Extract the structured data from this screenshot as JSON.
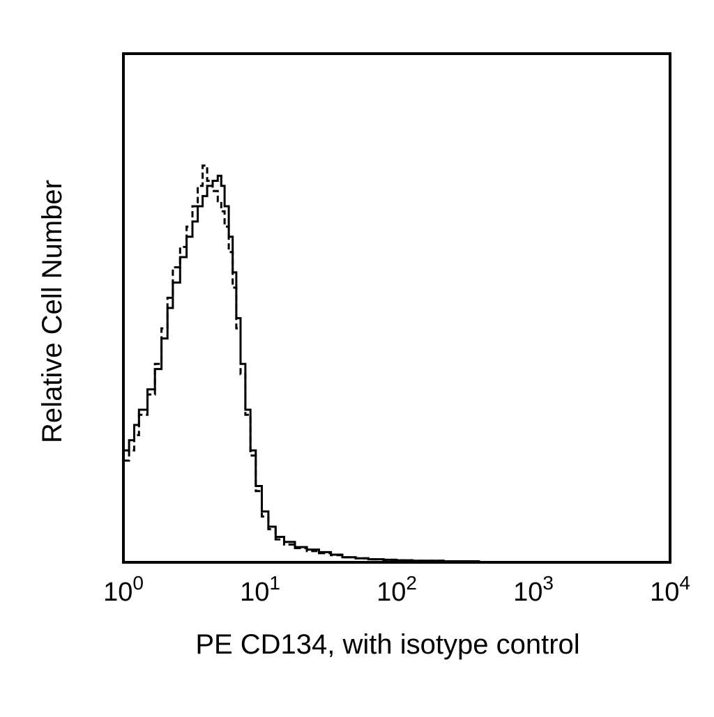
{
  "chart_data": {
    "type": "line",
    "title": "",
    "xlabel": "PE CD134, with isotype control",
    "ylabel": "Relative Cell Number",
    "xscale": "log",
    "xlim": [
      1,
      10000
    ],
    "ylim": [
      0,
      100
    ],
    "x_ticks": [
      {
        "base": "10",
        "exp": "0"
      },
      {
        "base": "10",
        "exp": "1"
      },
      {
        "base": "10",
        "exp": "2"
      },
      {
        "base": "10",
        "exp": "3"
      },
      {
        "base": "10",
        "exp": "4"
      }
    ],
    "grid": false,
    "legend": "none",
    "series": [
      {
        "style": "solid",
        "color": "#000000",
        "x": [
          1.0,
          1.1,
          1.2,
          1.3,
          1.5,
          1.7,
          1.9,
          2.1,
          2.3,
          2.6,
          2.9,
          3.2,
          3.5,
          3.8,
          4.1,
          4.5,
          4.9,
          5.2,
          5.5,
          5.9,
          6.3,
          6.7,
          7.2,
          7.8,
          8.5,
          9.3,
          10.3,
          11.5,
          13.0,
          15.0,
          18.0,
          22.0,
          27.0,
          33.0,
          40.0,
          50.0,
          62.0,
          80.0,
          100.0,
          130.0,
          170.0,
          220.0,
          300.0,
          400.0
        ],
        "y": [
          22,
          24,
          27,
          30,
          34,
          38,
          44,
          50,
          55,
          60,
          64,
          67,
          70,
          72,
          74,
          75,
          76,
          74,
          70,
          64,
          57,
          48,
          39,
          30,
          22,
          15,
          10,
          7,
          5,
          4,
          3,
          2.5,
          2,
          1.5,
          1,
          0.8,
          0.6,
          0.5,
          0.4,
          0.3,
          0.3,
          0.2,
          0.2,
          0
        ]
      },
      {
        "style": "dashed",
        "color": "#000000",
        "x": [
          1.0,
          1.1,
          1.2,
          1.3,
          1.5,
          1.7,
          1.9,
          2.1,
          2.3,
          2.6,
          2.9,
          3.2,
          3.5,
          3.8,
          4.1,
          4.5,
          4.9,
          5.2,
          5.5,
          5.9,
          6.3,
          6.7,
          7.2,
          7.8,
          8.5,
          9.3,
          10.3,
          11.5,
          13.0,
          15.0,
          18.0,
          22.0,
          27.0,
          33.0,
          40.0,
          50.0,
          62.0,
          80.0,
          100.0,
          130.0,
          170.0,
          220.0,
          300.0,
          400.0
        ],
        "y": [
          20,
          22,
          25,
          29,
          33,
          39,
          46,
          52,
          58,
          62,
          66,
          70,
          74,
          78,
          75,
          73,
          71,
          69,
          66,
          61,
          54,
          46,
          37,
          29,
          21,
          14,
          9,
          6.5,
          4.5,
          3.5,
          2.8,
          2.2,
          1.8,
          1.4,
          1,
          0.8,
          0.6,
          0.5,
          0.4,
          0.3,
          0.3,
          0.2,
          0.2,
          0
        ]
      }
    ]
  }
}
